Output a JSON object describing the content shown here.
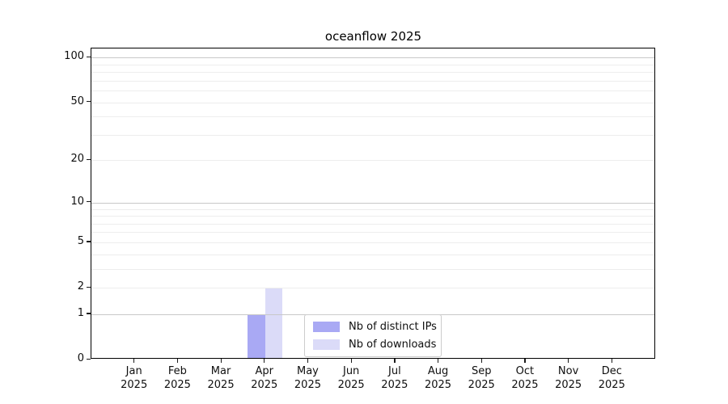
{
  "title": "oceanflow 2025",
  "legend": {
    "items": [
      {
        "label": "Nb of distinct IPs",
        "color": "#a9a9f4"
      },
      {
        "label": "Nb of downloads",
        "color": "#dbdbf8"
      }
    ]
  },
  "chart_data": {
    "type": "bar",
    "title": "oceanflow 2025",
    "categories": [
      "Jan",
      "Feb",
      "Mar",
      "Apr",
      "May",
      "Jun",
      "Jul",
      "Aug",
      "Sep",
      "Oct",
      "Nov",
      "Dec"
    ],
    "year_label": "2025",
    "series": [
      {
        "name": "Nb of distinct IPs",
        "color": "#a9a9f4",
        "values": [
          0,
          0,
          0,
          1,
          0,
          0,
          0,
          0,
          0,
          0,
          0,
          0
        ]
      },
      {
        "name": "Nb of downloads",
        "color": "#dbdbf8",
        "values": [
          0,
          0,
          0,
          2,
          0,
          0,
          0,
          0,
          0,
          0,
          0,
          0
        ]
      }
    ],
    "xlabel": "",
    "ylabel": "",
    "y_scale": "log10(1+v)",
    "ylim": [
      0,
      115
    ],
    "y_ticks": [
      0,
      1,
      2,
      5,
      10,
      20,
      50,
      100
    ],
    "y_major_gridlines": [
      1,
      10,
      100
    ],
    "y_minor_gridlines": [
      2,
      3,
      4,
      5,
      6,
      7,
      8,
      9,
      20,
      30,
      40,
      50,
      60,
      70,
      80,
      90
    ],
    "grid": true,
    "legend_position": "lower center"
  },
  "colors": {
    "grid_major": "#c8c8c8",
    "grid_minor": "#ededed",
    "spine": "#000000",
    "tick": "#1a1a1a",
    "text": "#0f0f0f"
  }
}
